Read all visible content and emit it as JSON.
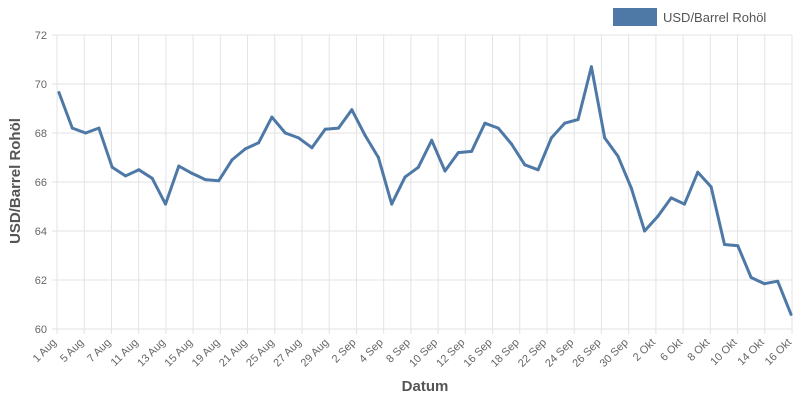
{
  "chart_data": {
    "type": "line",
    "title": "",
    "xlabel": "Datum",
    "ylabel": "USD/Barrel Rohöl",
    "ylim": [
      60,
      72
    ],
    "yticks": [
      60,
      62,
      64,
      66,
      68,
      70,
      72
    ],
    "grid": true,
    "legend_position": "top-right",
    "x_tick_labels": [
      "1 Aug",
      "5 Aug",
      "7 Aug",
      "11 Aug",
      "13 Aug",
      "15 Aug",
      "19 Aug",
      "21 Aug",
      "25 Aug",
      "27 Aug",
      "29 Aug",
      "2 Sep",
      "4 Sep",
      "8 Sep",
      "10 Sep",
      "12 Sep",
      "16 Sep",
      "18 Sep",
      "22 Sep",
      "24 Sep",
      "26 Sep",
      "30 Sep",
      "2 Okt",
      "6 Okt",
      "8 Okt",
      "10 Okt",
      "14 Okt",
      "16 Okt"
    ],
    "series": [
      {
        "name": "USD/Barrel Rohöl",
        "color": "#4e79a7",
        "values": [
          69.65,
          68.2,
          68.0,
          68.2,
          66.6,
          66.25,
          66.5,
          66.15,
          65.1,
          66.65,
          66.35,
          66.1,
          66.05,
          66.9,
          67.35,
          67.6,
          68.65,
          68.0,
          67.8,
          67.4,
          68.15,
          68.2,
          68.95,
          67.9,
          67.0,
          65.1,
          66.2,
          66.6,
          67.7,
          66.45,
          67.2,
          67.25,
          68.4,
          68.2,
          67.55,
          66.7,
          66.5,
          67.8,
          68.4,
          68.55,
          70.7,
          67.8,
          67.05,
          65.75,
          64.0,
          64.6,
          65.35,
          65.1,
          66.4,
          65.8,
          63.45,
          63.4,
          62.1,
          61.85,
          61.95,
          60.6
        ]
      }
    ]
  }
}
